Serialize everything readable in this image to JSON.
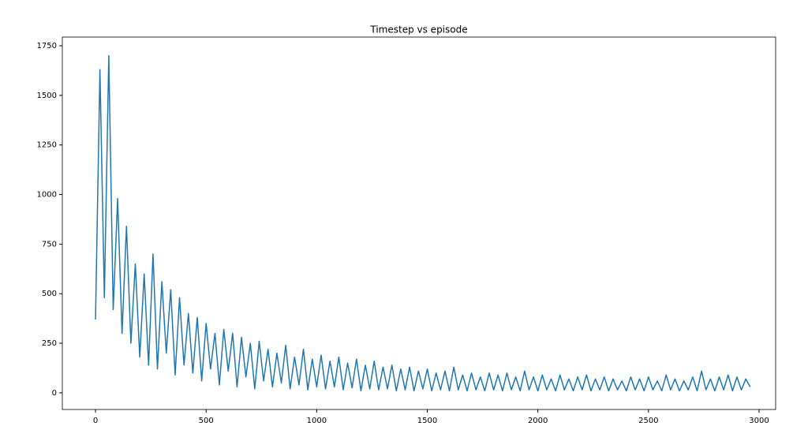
{
  "chart_data": {
    "type": "line",
    "title": "Timestep vs episode",
    "color": "#1f77b4",
    "x": [
      0,
      20,
      40,
      60,
      80,
      100,
      120,
      140,
      160,
      180,
      200,
      220,
      240,
      260,
      280,
      300,
      320,
      340,
      360,
      380,
      400,
      420,
      440,
      460,
      480,
      500,
      520,
      540,
      560,
      580,
      600,
      620,
      640,
      660,
      680,
      700,
      720,
      740,
      760,
      780,
      800,
      820,
      840,
      860,
      880,
      900,
      920,
      940,
      960,
      980,
      1000,
      1020,
      1040,
      1060,
      1080,
      1100,
      1120,
      1140,
      1160,
      1180,
      1200,
      1220,
      1240,
      1260,
      1280,
      1300,
      1320,
      1340,
      1360,
      1380,
      1400,
      1420,
      1440,
      1460,
      1480,
      1500,
      1520,
      1540,
      1560,
      1580,
      1600,
      1620,
      1640,
      1660,
      1680,
      1700,
      1720,
      1740,
      1760,
      1780,
      1800,
      1820,
      1840,
      1860,
      1880,
      1900,
      1920,
      1940,
      1960,
      1980,
      2000,
      2020,
      2040,
      2060,
      2080,
      2100,
      2120,
      2140,
      2160,
      2180,
      2200,
      2220,
      2240,
      2260,
      2280,
      2300,
      2320,
      2340,
      2360,
      2380,
      2400,
      2420,
      2440,
      2460,
      2480,
      2500,
      2520,
      2540,
      2560,
      2580,
      2600,
      2620,
      2640,
      2660,
      2680,
      2700,
      2720,
      2740,
      2760,
      2780,
      2800,
      2820,
      2840,
      2860,
      2880,
      2900,
      2920,
      2940,
      2960
    ],
    "values": [
      370,
      1630,
      480,
      1700,
      420,
      980,
      300,
      840,
      250,
      650,
      180,
      600,
      140,
      700,
      120,
      560,
      200,
      520,
      90,
      480,
      140,
      400,
      100,
      380,
      60,
      350,
      120,
      300,
      40,
      320,
      110,
      300,
      30,
      280,
      80,
      250,
      20,
      260,
      60,
      220,
      30,
      200,
      50,
      240,
      20,
      180,
      40,
      220,
      15,
      170,
      30,
      190,
      20,
      160,
      30,
      180,
      15,
      150,
      25,
      170,
      10,
      140,
      20,
      160,
      15,
      130,
      20,
      140,
      10,
      120,
      15,
      130,
      10,
      110,
      20,
      120,
      10,
      100,
      15,
      110,
      10,
      130,
      15,
      90,
      10,
      100,
      15,
      80,
      10,
      100,
      15,
      90,
      10,
      100,
      15,
      80,
      10,
      110,
      15,
      80,
      10,
      90,
      15,
      70,
      10,
      90,
      15,
      70,
      10,
      80,
      15,
      90,
      10,
      70,
      15,
      80,
      10,
      70,
      15,
      60,
      10,
      80,
      15,
      70,
      10,
      80,
      15,
      60,
      10,
      90,
      15,
      70,
      10,
      60,
      15,
      80,
      10,
      110,
      15,
      70,
      10,
      80,
      15,
      90,
      10,
      80,
      15,
      70,
      30
    ],
    "xlim": [
      -150,
      3075
    ],
    "xticks": [
      0,
      500,
      1000,
      1500,
      2000,
      2500,
      3000
    ],
    "ylim": [
      -84,
      1794
    ],
    "yticks": [
      0,
      250,
      500,
      750,
      1000,
      1250,
      1500,
      1750
    ]
  }
}
